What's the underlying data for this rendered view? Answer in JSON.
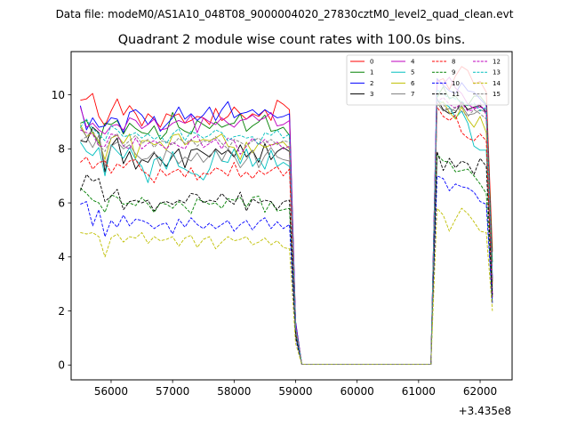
{
  "figure": {
    "suptitle": "Data file: modeM0/AS1A10_048T08_9000004020_27830cztM0_level2_quad_clean.evt"
  },
  "chart_data": {
    "type": "line",
    "title": "Quadrant 2 module wise count rates with 100.0s bins.",
    "xlabel": "",
    "ylabel": "",
    "x_offset_label": "+3.435e8",
    "xlim": [
      55350,
      62520
    ],
    "ylim": [
      -0.55,
      11.6
    ],
    "xticks": [
      56000,
      57000,
      58000,
      59000,
      60000,
      61000,
      62000
    ],
    "xtick_labels": [
      "56000",
      "57000",
      "58000",
      "59000",
      "60000",
      "61000",
      "62000"
    ],
    "yticks": [
      0,
      2,
      4,
      6,
      8,
      10
    ],
    "ytick_labels": [
      "0",
      "2",
      "4",
      "6",
      "8",
      "10"
    ],
    "grid": false,
    "legend_placement": "upper right",
    "legend_columns": 4,
    "x": [
      55500,
      55600,
      55700,
      55800,
      55900,
      56000,
      56100,
      56200,
      56300,
      56400,
      56500,
      56600,
      56700,
      56800,
      56900,
      57000,
      57100,
      57200,
      57300,
      57400,
      57500,
      57600,
      57700,
      57800,
      57900,
      58000,
      58100,
      58200,
      58300,
      58400,
      58500,
      58600,
      58700,
      58800,
      58900,
      59000,
      59100,
      59200,
      61200,
      61300,
      61400,
      61500,
      61600,
      61700,
      61800,
      61900,
      62000,
      62100,
      62200
    ],
    "series": [
      {
        "name": "0",
        "color": "#ff0000",
        "dash": "solid",
        "values": [
          9.8,
          9.85,
          10.05,
          9.2,
          8.85,
          9.4,
          9.85,
          9.25,
          9.6,
          9.3,
          8.85,
          9.3,
          9.1,
          8.8,
          9.3,
          9.2,
          9.3,
          8.95,
          9.05,
          9.2,
          9.15,
          8.9,
          9.5,
          9.05,
          9.2,
          9.55,
          9.3,
          9.1,
          9.3,
          9.2,
          9.45,
          9.05,
          9.8,
          9.65,
          9.45,
          1.6,
          0.03,
          0.03,
          0.03,
          10.5,
          10.6,
          10.2,
          10.7,
          11.05,
          10.9,
          10.4,
          10.5,
          10.1,
          4.2
        ]
      },
      {
        "name": "1",
        "color": "#008000",
        "dash": "solid",
        "values": [
          8.95,
          9.05,
          8.6,
          8.2,
          8.95,
          8.9,
          9.05,
          8.55,
          8.95,
          8.75,
          8.6,
          8.55,
          8.85,
          8.35,
          8.6,
          9.35,
          8.8,
          8.65,
          8.55,
          9.05,
          8.9,
          8.75,
          9.0,
          8.8,
          8.9,
          8.95,
          9.3,
          8.65,
          8.85,
          9.0,
          9.25,
          8.65,
          8.7,
          8.8,
          8.5,
          1.5,
          0.03,
          0.03,
          0.03,
          9.9,
          10.3,
          9.85,
          9.95,
          9.65,
          9.6,
          9.95,
          9.95,
          9.65,
          3.8
        ]
      },
      {
        "name": "2",
        "color": "#0000ff",
        "dash": "solid",
        "values": [
          9.6,
          8.7,
          9.15,
          8.8,
          8.85,
          9.15,
          9.1,
          8.6,
          9.35,
          9.45,
          9.25,
          8.9,
          9.2,
          8.65,
          8.9,
          9.15,
          9.55,
          9.1,
          9.3,
          9.05,
          9.25,
          9.55,
          9.05,
          9.45,
          9.75,
          9.15,
          9.3,
          9.35,
          9.45,
          9.25,
          9.45,
          9.3,
          9.15,
          9.2,
          9.3,
          1.6,
          0.03,
          0.03,
          0.03,
          10.6,
          10.35,
          10.15,
          10.05,
          10.45,
          10.15,
          10.1,
          9.85,
          9.6,
          3.2
        ]
      },
      {
        "name": "3",
        "color": "#000000",
        "dash": "solid",
        "values": [
          8.3,
          8.25,
          8.8,
          8.6,
          7.15,
          8.1,
          8.4,
          7.45,
          7.9,
          7.25,
          7.6,
          7.5,
          7.85,
          7.6,
          7.35,
          7.75,
          8.0,
          7.3,
          7.95,
          8.0,
          7.85,
          7.7,
          8.0,
          7.8,
          7.95,
          7.7,
          8.15,
          7.7,
          7.95,
          7.5,
          8.2,
          7.6,
          7.9,
          8.05,
          7.9,
          1.3,
          0.03,
          0.03,
          0.03,
          9.85,
          9.45,
          9.3,
          9.35,
          9.75,
          9.45,
          9.55,
          9.6,
          9.35,
          3.1
        ]
      },
      {
        "name": "4",
        "color": "#bf00bf",
        "dash": "solid",
        "values": [
          9.55,
          8.8,
          8.95,
          8.7,
          8.55,
          8.85,
          8.9,
          8.7,
          9.15,
          9.05,
          8.75,
          8.9,
          9.1,
          8.7,
          8.75,
          8.95,
          9.05,
          8.95,
          9.25,
          8.6,
          9.15,
          9.0,
          8.9,
          9.15,
          8.95,
          8.8,
          9.05,
          9.1,
          9.25,
          9.05,
          9.15,
          9.35,
          8.85,
          8.9,
          9.05,
          1.5,
          0.03,
          0.03,
          0.03,
          10.55,
          10.4,
          10.65,
          10.25,
          10.05,
          9.65,
          9.5,
          9.55,
          9.45,
          2.6
        ]
      },
      {
        "name": "5",
        "color": "#00bfbf",
        "dash": "solid",
        "values": [
          8.25,
          7.9,
          7.75,
          8.05,
          7.0,
          8.15,
          7.9,
          7.65,
          8.05,
          7.6,
          7.35,
          6.75,
          7.6,
          7.7,
          7.25,
          7.9,
          7.35,
          7.25,
          7.1,
          7.05,
          6.85,
          7.25,
          7.95,
          7.55,
          7.5,
          8.0,
          7.45,
          8.0,
          7.35,
          7.65,
          7.25,
          7.95,
          7.35,
          7.5,
          7.35,
          1.3,
          0.03,
          0.03,
          0.03,
          9.8,
          9.7,
          9.55,
          9.15,
          9.4,
          8.95,
          8.1,
          7.95,
          7.95,
          2.8
        ]
      },
      {
        "name": "6",
        "color": "#bfbf00",
        "dash": "solid",
        "values": [
          8.9,
          8.45,
          8.6,
          8.3,
          7.6,
          8.4,
          8.5,
          8.2,
          8.55,
          7.65,
          8.3,
          8.3,
          8.15,
          8.25,
          7.95,
          8.5,
          8.55,
          8.15,
          8.3,
          8.25,
          8.35,
          8.3,
          8.4,
          8.55,
          8.1,
          8.05,
          7.6,
          8.25,
          7.85,
          8.2,
          8.05,
          8.15,
          8.2,
          8.25,
          8.0,
          1.4,
          0.03,
          0.03,
          0.03,
          9.6,
          9.75,
          9.35,
          9.1,
          9.55,
          9.1,
          8.8,
          9.2,
          8.6,
          3.0
        ]
      },
      {
        "name": "7",
        "color": "#808080",
        "dash": "solid",
        "values": [
          8.8,
          8.45,
          8.05,
          8.5,
          7.35,
          8.1,
          8.25,
          8.0,
          8.15,
          7.8,
          7.6,
          7.65,
          7.9,
          7.35,
          7.95,
          7.8,
          7.45,
          7.7,
          7.55,
          7.85,
          7.5,
          7.75,
          7.95,
          7.55,
          8.0,
          7.75,
          7.3,
          7.6,
          7.95,
          7.3,
          7.75,
          8.05,
          7.7,
          7.6,
          7.55,
          1.4,
          0.03,
          0.03,
          0.03,
          9.7,
          9.4,
          9.5,
          9.4,
          9.6,
          9.25,
          9.3,
          9.45,
          9.35,
          3.0
        ]
      },
      {
        "name": "8",
        "color": "#ff0000",
        "dash": "dashed",
        "values": [
          7.5,
          7.7,
          7.25,
          7.5,
          7.55,
          7.1,
          7.45,
          7.3,
          7.55,
          7.6,
          7.2,
          7.05,
          6.75,
          7.25,
          7.0,
          7.15,
          7.25,
          6.95,
          7.3,
          6.85,
          7.1,
          7.05,
          7.3,
          7.2,
          7.0,
          7.5,
          6.95,
          7.15,
          6.9,
          7.2,
          7.05,
          7.2,
          7.35,
          7.0,
          7.25,
          1.3,
          0.03,
          0.03,
          0.03,
          9.55,
          9.2,
          9.05,
          9.25,
          8.6,
          8.4,
          8.3,
          8.55,
          8.3,
          2.5
        ]
      },
      {
        "name": "9",
        "color": "#008000",
        "dash": "dashed",
        "values": [
          6.55,
          6.35,
          6.1,
          6.0,
          5.65,
          6.3,
          6.2,
          5.95,
          6.0,
          5.9,
          6.2,
          5.95,
          5.65,
          6.0,
          5.95,
          5.8,
          6.05,
          5.85,
          5.6,
          6.15,
          6.05,
          5.95,
          6.0,
          5.8,
          6.15,
          6.1,
          6.2,
          5.85,
          6.2,
          6.25,
          5.65,
          6.05,
          5.7,
          5.75,
          5.8,
          1.1,
          0.03,
          0.03,
          0.03,
          7.8,
          7.55,
          7.5,
          7.15,
          7.2,
          7.25,
          7.0,
          6.7,
          6.35,
          2.3
        ]
      },
      {
        "name": "10",
        "color": "#0000ff",
        "dash": "dashed",
        "values": [
          5.95,
          6.05,
          5.15,
          5.75,
          4.75,
          5.35,
          5.1,
          5.55,
          5.15,
          5.4,
          5.35,
          5.25,
          5.05,
          5.2,
          5.25,
          4.85,
          5.4,
          5.1,
          5.45,
          5.2,
          5.05,
          5.25,
          5.05,
          5.2,
          5.35,
          4.95,
          5.2,
          5.35,
          5.0,
          5.3,
          5.45,
          5.05,
          5.3,
          5.05,
          5.2,
          1.0,
          0.03,
          0.03,
          0.03,
          7.0,
          6.9,
          6.45,
          6.7,
          6.6,
          6.55,
          6.4,
          6.05,
          5.95,
          2.3
        ]
      },
      {
        "name": "11",
        "color": "#000000",
        "dash": "dashed",
        "values": [
          6.45,
          7.05,
          6.8,
          6.9,
          6.05,
          6.25,
          6.5,
          5.75,
          6.05,
          6.1,
          6.0,
          6.1,
          5.7,
          6.0,
          6.05,
          5.95,
          6.1,
          6.0,
          6.35,
          6.3,
          6.0,
          6.1,
          6.05,
          6.35,
          6.1,
          5.95,
          6.4,
          5.7,
          6.15,
          6.0,
          6.1,
          6.05,
          5.75,
          6.05,
          6.1,
          1.1,
          0.03,
          0.03,
          0.03,
          7.9,
          7.2,
          7.65,
          7.3,
          7.55,
          7.45,
          7.05,
          7.65,
          7.35,
          2.6
        ]
      },
      {
        "name": "12",
        "color": "#bf00bf",
        "dash": "dashed",
        "values": [
          8.7,
          8.6,
          8.55,
          8.1,
          8.1,
          8.55,
          8.5,
          8.1,
          8.0,
          8.4,
          8.0,
          8.2,
          8.3,
          8.15,
          8.0,
          8.25,
          8.1,
          8.0,
          8.35,
          8.5,
          8.05,
          8.2,
          8.35,
          8.0,
          8.4,
          8.3,
          7.8,
          8.1,
          8.4,
          8.15,
          8.35,
          8.1,
          8.25,
          8.0,
          8.1,
          1.4,
          0.03,
          0.03,
          0.03,
          9.75,
          9.9,
          9.65,
          9.5,
          9.7,
          9.4,
          9.45,
          9.7,
          9.25,
          3.2
        ]
      },
      {
        "name": "13",
        "color": "#00bfbf",
        "dash": "dashed",
        "values": [
          8.8,
          9.1,
          8.75,
          8.55,
          8.3,
          8.85,
          8.7,
          8.45,
          8.5,
          8.6,
          8.4,
          8.55,
          8.35,
          8.5,
          8.2,
          8.55,
          8.75,
          8.3,
          8.65,
          8.55,
          8.4,
          8.5,
          8.7,
          8.6,
          8.3,
          8.45,
          8.5,
          8.4,
          8.45,
          8.15,
          8.6,
          8.5,
          8.7,
          8.4,
          8.55,
          1.4,
          0.03,
          0.03,
          0.03,
          10.2,
          10.0,
          9.9,
          9.85,
          9.75,
          9.6,
          9.7,
          9.4,
          9.55,
          3.3
        ]
      },
      {
        "name": "14",
        "color": "#bfbf00",
        "dash": "dashed",
        "values": [
          4.9,
          4.85,
          4.9,
          4.75,
          4.0,
          4.7,
          4.85,
          4.55,
          4.75,
          4.7,
          4.9,
          4.5,
          4.75,
          4.6,
          4.65,
          4.75,
          4.4,
          4.7,
          4.8,
          4.35,
          4.65,
          4.75,
          4.3,
          4.55,
          4.75,
          4.6,
          4.65,
          4.75,
          4.45,
          4.55,
          4.7,
          4.45,
          4.6,
          4.35,
          4.3,
          0.8,
          0.03,
          0.03,
          0.03,
          5.8,
          5.55,
          4.95,
          5.4,
          5.8,
          5.6,
          5.3,
          4.95,
          4.9,
          2.0
        ]
      },
      {
        "name": "15",
        "color": "#808080",
        "dash": "dashed",
        "values": [
          8.3,
          8.45,
          8.7,
          8.15,
          7.9,
          8.4,
          8.55,
          8.1,
          8.3,
          8.5,
          8.2,
          8.35,
          8.05,
          8.3,
          8.25,
          8.15,
          8.4,
          8.2,
          8.35,
          8.1,
          8.3,
          8.25,
          8.45,
          8.2,
          8.0,
          8.35,
          8.25,
          8.1,
          8.3,
          8.4,
          8.2,
          8.35,
          8.15,
          8.3,
          8.25,
          1.4,
          0.03,
          0.03,
          0.03,
          9.6,
          9.65,
          9.3,
          9.55,
          9.4,
          9.2,
          9.45,
          9.3,
          9.1,
          3.1
        ]
      }
    ]
  }
}
